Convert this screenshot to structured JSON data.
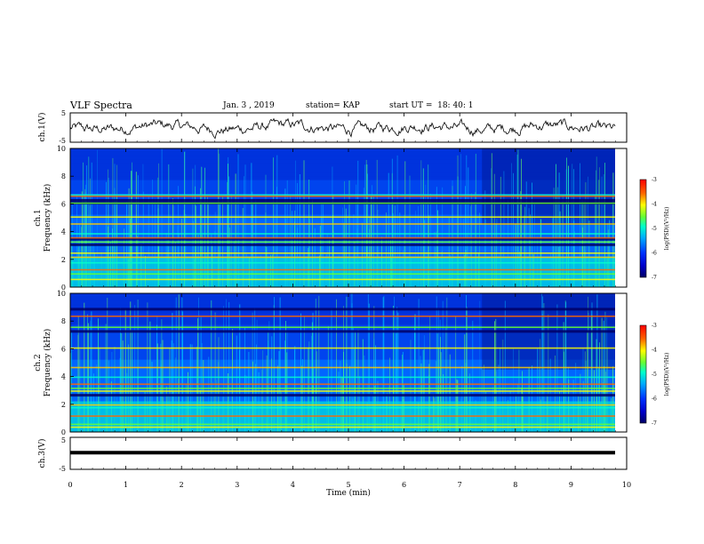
{
  "header": {
    "title": "VLF Spectra",
    "date": "Jan. 3 , 2019",
    "station": "station= KAP",
    "start": "start UT =  18: 40: 1"
  },
  "colors": {
    "spectrogram_scale": [
      "#000066",
      "#0000cc",
      "#0033ff",
      "#00aaff",
      "#00ffcc",
      "#66ff33",
      "#ffff00",
      "#ff6600",
      "#ff0000"
    ],
    "trace": "#000000"
  },
  "chart_data": [
    {
      "type": "line",
      "name": "ch1-waveform",
      "ylabel": "ch.1(V)",
      "ylim": [
        -5,
        5
      ],
      "yticks": [
        "5",
        "-5"
      ],
      "xlim": [
        0,
        10
      ],
      "noise_amplitude_v": 1.8
    },
    {
      "type": "heatmap",
      "name": "ch1-spectrogram",
      "ylabel_channel": "ch.1",
      "ylabel": "Frequency (kHz)",
      "ylim": [
        0,
        10
      ],
      "yticks": [
        "0",
        "2",
        "4",
        "6",
        "8",
        "10"
      ],
      "xlim": [
        0,
        10
      ],
      "colorbar": {
        "label": "log(PSD)(V²/Hz)",
        "range": [
          -7,
          -3
        ],
        "ticks": [
          "-3",
          "-4",
          "-5",
          "-6",
          "-7"
        ]
      },
      "regime_change_min": 7.4,
      "bands_khz": [
        0.6,
        1.0,
        1.3,
        1.8,
        2.2,
        2.5,
        3.3,
        3.6,
        3.9,
        4.6,
        5.1,
        6.1,
        6.6,
        6.7
      ],
      "dark_bands_khz": [
        3.0,
        3.4,
        6.0,
        6.2
      ]
    },
    {
      "type": "heatmap",
      "name": "ch2-spectrogram",
      "ylabel_channel": "ch.2",
      "ylabel": "Frequency (kHz)",
      "ylim": [
        0,
        10
      ],
      "yticks": [
        "0",
        "2",
        "4",
        "6",
        "8",
        "10"
      ],
      "xlim": [
        0,
        10
      ],
      "colorbar": {
        "label": "log(PSD)(V²/Hz)",
        "range": [
          -7,
          -3
        ],
        "ticks": [
          "-3",
          "-4",
          "-5",
          "-6",
          "-7"
        ]
      },
      "regime_change_min": 7.4,
      "bands_khz": [
        0.4,
        0.6,
        1.2,
        1.8,
        2.0,
        3.0,
        3.2,
        3.5,
        4.0,
        4.7,
        6.1,
        7.6,
        8.4
      ],
      "dark_bands_khz": [
        2.6,
        7.2,
        8.8
      ]
    },
    {
      "type": "line",
      "name": "ch3-waveform",
      "ylabel": "ch.3(V)",
      "ylim": [
        -5,
        5
      ],
      "yticks": [
        "5",
        "-5"
      ],
      "xlim": [
        0,
        10
      ],
      "constant_value_v": 0.2,
      "xlabel": "Time (min)",
      "xticks": [
        "0",
        "1",
        "2",
        "3",
        "4",
        "5",
        "6",
        "7",
        "8",
        "9",
        "10"
      ]
    }
  ]
}
